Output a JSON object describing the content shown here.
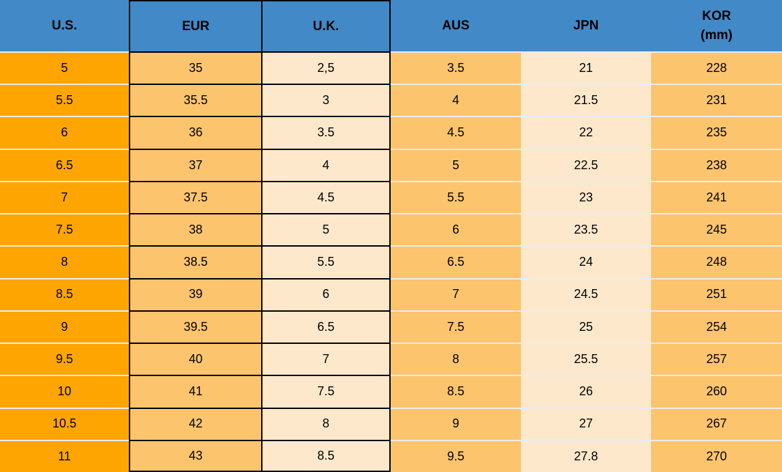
{
  "header": {
    "cells": [
      {
        "id": "us",
        "label": "U.S."
      },
      {
        "id": "eur",
        "label": "EUR"
      },
      {
        "id": "uk",
        "label": "U.K."
      },
      {
        "id": "aus",
        "label": "AUS"
      },
      {
        "id": "jpn",
        "label": "JPN"
      },
      {
        "id": "kor",
        "label": "KOR",
        "sublabel": "(mm)"
      }
    ]
  },
  "chart_data": {
    "type": "table",
    "columns": [
      "U.S.",
      "EUR",
      "U.K.",
      "AUS",
      "JPN",
      "KOR (mm)"
    ],
    "rows": [
      [
        "5",
        "35",
        "2,5",
        "3.5",
        "21",
        "228"
      ],
      [
        "5.5",
        "35.5",
        "3",
        "4",
        "21.5",
        "231"
      ],
      [
        "6",
        "36",
        "3.5",
        "4.5",
        "22",
        "235"
      ],
      [
        "6.5",
        "37",
        "4",
        "5",
        "22.5",
        "238"
      ],
      [
        "7",
        "37.5",
        "4.5",
        "5.5",
        "23",
        "241"
      ],
      [
        "7.5",
        "38",
        "5",
        "6",
        "23.5",
        "245"
      ],
      [
        "8",
        "38.5",
        "5.5",
        "6.5",
        "24",
        "248"
      ],
      [
        "8.5",
        "39",
        "6",
        "7",
        "24.5",
        "251"
      ],
      [
        "9",
        "39.5",
        "6.5",
        "7.5",
        "25",
        "254"
      ],
      [
        "9.5",
        "40",
        "7",
        "8",
        "25.5",
        "257"
      ],
      [
        "10",
        "41",
        "7.5",
        "8.5",
        "26",
        "260"
      ],
      [
        "10.5",
        "42",
        "8",
        "9",
        "27",
        "267"
      ],
      [
        "11",
        "43",
        "8.5",
        "9.5",
        "27.8",
        "270"
      ]
    ]
  },
  "colors": {
    "header_bg": "#4289C7",
    "us_bg": "#FFA502",
    "light_orange_bg": "#FCC46D",
    "cream_bg": "#FDE8CC",
    "border_dark": "#000000",
    "row_separator": "#ECECEC",
    "text_color": "#000000"
  }
}
